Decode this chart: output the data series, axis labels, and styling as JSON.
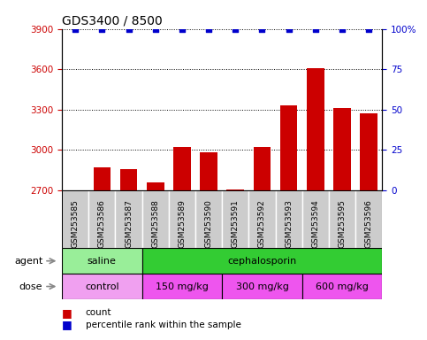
{
  "title": "GDS3400 / 8500",
  "samples": [
    "GSM253585",
    "GSM253586",
    "GSM253587",
    "GSM253588",
    "GSM253589",
    "GSM253590",
    "GSM253591",
    "GSM253592",
    "GSM253593",
    "GSM253594",
    "GSM253595",
    "GSM253596"
  ],
  "counts": [
    2700,
    2870,
    2860,
    2760,
    3020,
    2980,
    2705,
    3020,
    3330,
    3610,
    3310,
    3270
  ],
  "percentile_ranks": [
    100,
    100,
    100,
    100,
    100,
    100,
    100,
    100,
    100,
    100,
    100,
    100
  ],
  "bar_color": "#cc0000",
  "dot_color": "#0000cc",
  "ylim_left": [
    2700,
    3900
  ],
  "ylim_right": [
    0,
    100
  ],
  "yticks_left": [
    2700,
    3000,
    3300,
    3600,
    3900
  ],
  "ytick_labels_left": [
    "2700",
    "3000",
    "3300",
    "3600",
    "3900"
  ],
  "yticks_right": [
    0,
    25,
    50,
    75,
    100
  ],
  "ytick_labels_right": [
    "0",
    "25",
    "50",
    "75",
    "100%"
  ],
  "agent_groups": [
    {
      "label": "saline",
      "start": 0,
      "end": 3,
      "color": "#99ee99"
    },
    {
      "label": "cephalosporin",
      "start": 3,
      "end": 12,
      "color": "#33cc33"
    }
  ],
  "dose_groups": [
    {
      "label": "control",
      "start": 0,
      "end": 3,
      "color": "#f0a0f0"
    },
    {
      "label": "150 mg/kg",
      "start": 3,
      "end": 6,
      "color": "#ee55ee"
    },
    {
      "label": "300 mg/kg",
      "start": 6,
      "end": 9,
      "color": "#ee55ee"
    },
    {
      "label": "600 mg/kg",
      "start": 9,
      "end": 12,
      "color": "#ee55ee"
    }
  ],
  "sample_bg": "#cccccc",
  "legend_count_color": "#cc0000",
  "legend_dot_color": "#0000cc",
  "bg_color": "#ffffff",
  "title_fontsize": 10,
  "tick_fontsize": 7.5,
  "sample_fontsize": 6.5,
  "row_fontsize": 8
}
